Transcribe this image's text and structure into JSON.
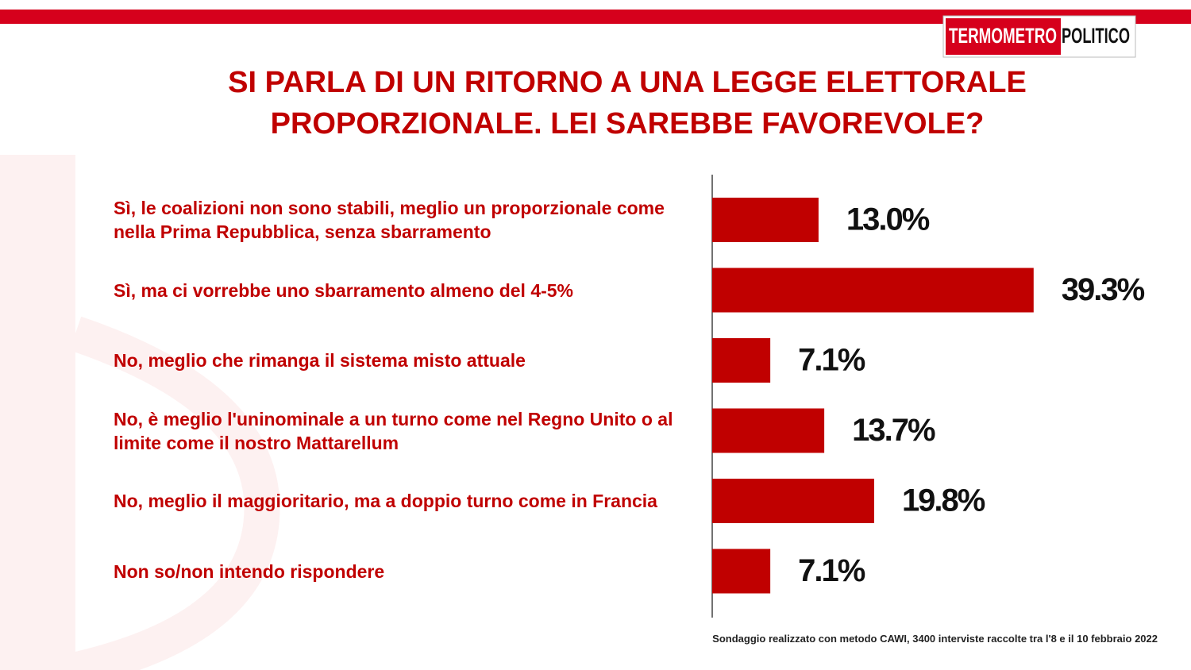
{
  "logo": {
    "part1": "TERMOMETRO",
    "part2": "POLITICO"
  },
  "chart_data": {
    "type": "bar",
    "orientation": "horizontal",
    "title": "SI PARLA DI UN RITORNO A UNA LEGGE ELETTORALE PROPORZIONALE. LEI SAREBBE FAVOREVOLE?",
    "categories": [
      "Sì, le coalizioni non sono stabili, meglio un proporzionale come nella Prima Repubblica, senza sbarramento",
      "Sì, ma ci vorrebbe uno sbarramento almeno del 4-5%",
      "No, meglio che rimanga il sistema misto attuale",
      "No, è meglio l'uninominale a un turno come nel Regno Unito o al limite come il nostro Mattarellum",
      "No, meglio il maggioritario, ma a doppio turno come in Francia",
      "Non so/non intendo rispondere"
    ],
    "values": [
      13.0,
      39.3,
      7.1,
      13.7,
      19.8,
      7.1
    ],
    "value_labels": [
      "13.0%",
      "39.3%",
      "7.1%",
      "13.7%",
      "19.8%",
      "7.1%"
    ],
    "color": "#c00000",
    "note": "Sondaggio realizzato con metodo CAWI, 3400 interviste raccolte tra l'8 e il 10 febbraio 2022"
  }
}
